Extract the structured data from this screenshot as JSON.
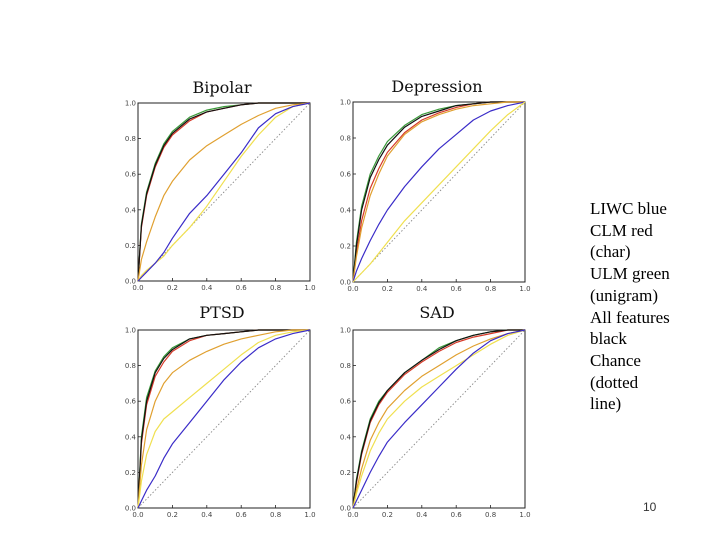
{
  "legend": {
    "lines": [
      "LIWC blue",
      "CLM red",
      "(char)",
      "ULM green",
      "(unigram)",
      "All features",
      "black",
      "Chance",
      "(dotted",
      "line)"
    ]
  },
  "page_number": "10",
  "colors": {
    "liwc": "#3a2cc8",
    "clm": "#d63a2a",
    "ulm": "#3a9a3a",
    "all": "#111111",
    "chance": "#888888",
    "orange": "#e0a030",
    "yellow": "#f0e050"
  },
  "chart_data": [
    {
      "type": "line",
      "title": "Bipolar",
      "xlim": [
        0,
        1
      ],
      "ylim": [
        0,
        1
      ],
      "xticks": [
        "0.0",
        "0.2",
        "0.4",
        "0.6",
        "0.8",
        "1.0"
      ],
      "yticks": [
        "0.0",
        "0.2",
        "0.4",
        "0.6",
        "0.8",
        "1.0"
      ],
      "x": [
        0,
        0.02,
        0.05,
        0.1,
        0.15,
        0.2,
        0.3,
        0.4,
        0.5,
        0.6,
        0.7,
        0.8,
        0.9,
        1.0
      ],
      "series": [
        {
          "color": "ulm",
          "values": [
            0,
            0.32,
            0.5,
            0.66,
            0.77,
            0.84,
            0.92,
            0.96,
            0.98,
            0.99,
            1.0,
            1.0,
            1.0,
            1.0
          ]
        },
        {
          "color": "clm",
          "values": [
            0,
            0.3,
            0.48,
            0.64,
            0.75,
            0.82,
            0.9,
            0.95,
            0.97,
            0.99,
            1.0,
            1.0,
            1.0,
            1.0
          ]
        },
        {
          "color": "all",
          "values": [
            0,
            0.31,
            0.49,
            0.65,
            0.76,
            0.83,
            0.91,
            0.95,
            0.97,
            0.99,
            1.0,
            1.0,
            1.0,
            1.0
          ]
        },
        {
          "color": "orange",
          "values": [
            0,
            0.12,
            0.22,
            0.36,
            0.48,
            0.56,
            0.68,
            0.76,
            0.82,
            0.88,
            0.93,
            0.97,
            0.99,
            1.0
          ]
        },
        {
          "color": "yellow",
          "values": [
            0,
            0.03,
            0.06,
            0.1,
            0.14,
            0.2,
            0.3,
            0.42,
            0.56,
            0.7,
            0.82,
            0.92,
            0.98,
            1.0
          ]
        },
        {
          "color": "liwc",
          "values": [
            0,
            0.02,
            0.05,
            0.1,
            0.16,
            0.24,
            0.38,
            0.48,
            0.6,
            0.72,
            0.86,
            0.94,
            0.98,
            1.0
          ]
        },
        {
          "color": "chance",
          "dashed": true,
          "values": [
            0,
            0.02,
            0.05,
            0.1,
            0.15,
            0.2,
            0.3,
            0.4,
            0.5,
            0.6,
            0.7,
            0.8,
            0.9,
            1.0
          ]
        }
      ]
    },
    {
      "type": "line",
      "title": "Depression",
      "xlim": [
        0,
        1
      ],
      "ylim": [
        0,
        1
      ],
      "xticks": [
        "0.0",
        "0.2",
        "0.4",
        "0.6",
        "0.8",
        "1.0"
      ],
      "yticks": [
        "0.0",
        "0.2",
        "0.4",
        "0.6",
        "0.8",
        "1.0"
      ],
      "x": [
        0,
        0.02,
        0.05,
        0.1,
        0.15,
        0.2,
        0.3,
        0.4,
        0.5,
        0.6,
        0.7,
        0.8,
        0.9,
        1.0
      ],
      "series": [
        {
          "color": "ulm",
          "values": [
            0,
            0.22,
            0.42,
            0.6,
            0.7,
            0.78,
            0.87,
            0.93,
            0.96,
            0.98,
            0.99,
            1.0,
            1.0,
            1.0
          ]
        },
        {
          "color": "clm",
          "values": [
            0,
            0.16,
            0.34,
            0.52,
            0.63,
            0.72,
            0.83,
            0.9,
            0.94,
            0.97,
            0.99,
            1.0,
            1.0,
            1.0
          ]
        },
        {
          "color": "all",
          "values": [
            0,
            0.2,
            0.4,
            0.58,
            0.68,
            0.76,
            0.86,
            0.92,
            0.95,
            0.98,
            0.99,
            1.0,
            1.0,
            1.0
          ]
        },
        {
          "color": "orange",
          "values": [
            0,
            0.14,
            0.3,
            0.48,
            0.6,
            0.7,
            0.82,
            0.89,
            0.93,
            0.96,
            0.98,
            0.99,
            1.0,
            1.0
          ]
        },
        {
          "color": "liwc",
          "values": [
            0,
            0.06,
            0.13,
            0.23,
            0.32,
            0.4,
            0.53,
            0.64,
            0.74,
            0.82,
            0.9,
            0.95,
            0.98,
            1.0
          ]
        },
        {
          "color": "yellow",
          "values": [
            0,
            0.02,
            0.05,
            0.1,
            0.16,
            0.22,
            0.34,
            0.44,
            0.54,
            0.64,
            0.74,
            0.84,
            0.93,
            1.0
          ]
        },
        {
          "color": "chance",
          "dashed": true,
          "values": [
            0,
            0.02,
            0.05,
            0.1,
            0.15,
            0.2,
            0.3,
            0.4,
            0.5,
            0.6,
            0.7,
            0.8,
            0.9,
            1.0
          ]
        }
      ]
    },
    {
      "type": "line",
      "title": "PTSD",
      "xlim": [
        0,
        1
      ],
      "ylim": [
        0,
        1
      ],
      "xticks": [
        "0.0",
        "0.2",
        "0.4",
        "0.6",
        "0.8",
        "1.0"
      ],
      "yticks": [
        "0.0",
        "0.2",
        "0.4",
        "0.6",
        "0.8",
        "1.0"
      ],
      "x": [
        0,
        0.02,
        0.05,
        0.1,
        0.15,
        0.2,
        0.3,
        0.4,
        0.5,
        0.6,
        0.7,
        0.8,
        0.9,
        1.0
      ],
      "series": [
        {
          "color": "ulm",
          "values": [
            0,
            0.4,
            0.62,
            0.77,
            0.85,
            0.9,
            0.95,
            0.97,
            0.98,
            0.99,
            1.0,
            1.0,
            1.0,
            1.0
          ]
        },
        {
          "color": "clm",
          "values": [
            0,
            0.36,
            0.58,
            0.74,
            0.82,
            0.88,
            0.94,
            0.97,
            0.98,
            0.99,
            1.0,
            1.0,
            1.0,
            1.0
          ]
        },
        {
          "color": "all",
          "values": [
            0,
            0.38,
            0.6,
            0.76,
            0.84,
            0.89,
            0.95,
            0.97,
            0.98,
            0.99,
            1.0,
            1.0,
            1.0,
            1.0
          ]
        },
        {
          "color": "orange",
          "values": [
            0,
            0.24,
            0.44,
            0.6,
            0.7,
            0.76,
            0.83,
            0.88,
            0.92,
            0.95,
            0.97,
            0.99,
            1.0,
            1.0
          ]
        },
        {
          "color": "yellow",
          "values": [
            0,
            0.15,
            0.3,
            0.43,
            0.5,
            0.54,
            0.62,
            0.7,
            0.78,
            0.86,
            0.93,
            0.97,
            0.99,
            1.0
          ]
        },
        {
          "color": "liwc",
          "values": [
            0,
            0.04,
            0.1,
            0.18,
            0.28,
            0.36,
            0.48,
            0.6,
            0.72,
            0.82,
            0.9,
            0.95,
            0.98,
            1.0
          ]
        },
        {
          "color": "chance",
          "dashed": true,
          "values": [
            0,
            0.02,
            0.05,
            0.1,
            0.15,
            0.2,
            0.3,
            0.4,
            0.5,
            0.6,
            0.7,
            0.8,
            0.9,
            1.0
          ]
        }
      ]
    },
    {
      "type": "line",
      "title": "SAD",
      "xlim": [
        0,
        1
      ],
      "ylim": [
        0,
        1
      ],
      "xticks": [
        "0.0",
        "0.2",
        "0.4",
        "0.6",
        "0.8",
        "1.0"
      ],
      "yticks": [
        "0.0",
        "0.2",
        "0.4",
        "0.6",
        "0.8",
        "1.0"
      ],
      "x": [
        0,
        0.02,
        0.05,
        0.1,
        0.15,
        0.2,
        0.3,
        0.4,
        0.5,
        0.6,
        0.7,
        0.8,
        0.9,
        1.0
      ],
      "series": [
        {
          "color": "ulm",
          "values": [
            0,
            0.16,
            0.32,
            0.5,
            0.6,
            0.66,
            0.76,
            0.83,
            0.9,
            0.94,
            0.97,
            0.99,
            1.0,
            1.0
          ]
        },
        {
          "color": "clm",
          "values": [
            0,
            0.14,
            0.3,
            0.48,
            0.58,
            0.65,
            0.75,
            0.82,
            0.88,
            0.93,
            0.96,
            0.98,
            1.0,
            1.0
          ]
        },
        {
          "color": "all",
          "values": [
            0,
            0.15,
            0.31,
            0.49,
            0.59,
            0.66,
            0.76,
            0.83,
            0.89,
            0.94,
            0.97,
            0.99,
            1.0,
            1.0
          ]
        },
        {
          "color": "orange",
          "values": [
            0,
            0.1,
            0.22,
            0.38,
            0.48,
            0.56,
            0.66,
            0.74,
            0.8,
            0.86,
            0.91,
            0.95,
            0.98,
            1.0
          ]
        },
        {
          "color": "yellow",
          "values": [
            0,
            0.08,
            0.18,
            0.32,
            0.42,
            0.5,
            0.6,
            0.68,
            0.74,
            0.8,
            0.86,
            0.92,
            0.97,
            1.0
          ]
        },
        {
          "color": "liwc",
          "values": [
            0,
            0.04,
            0.1,
            0.2,
            0.29,
            0.37,
            0.48,
            0.58,
            0.68,
            0.78,
            0.87,
            0.94,
            0.98,
            1.0
          ]
        },
        {
          "color": "chance",
          "dashed": true,
          "values": [
            0,
            0.02,
            0.05,
            0.1,
            0.15,
            0.2,
            0.3,
            0.4,
            0.5,
            0.6,
            0.7,
            0.8,
            0.9,
            1.0
          ]
        }
      ]
    }
  ]
}
